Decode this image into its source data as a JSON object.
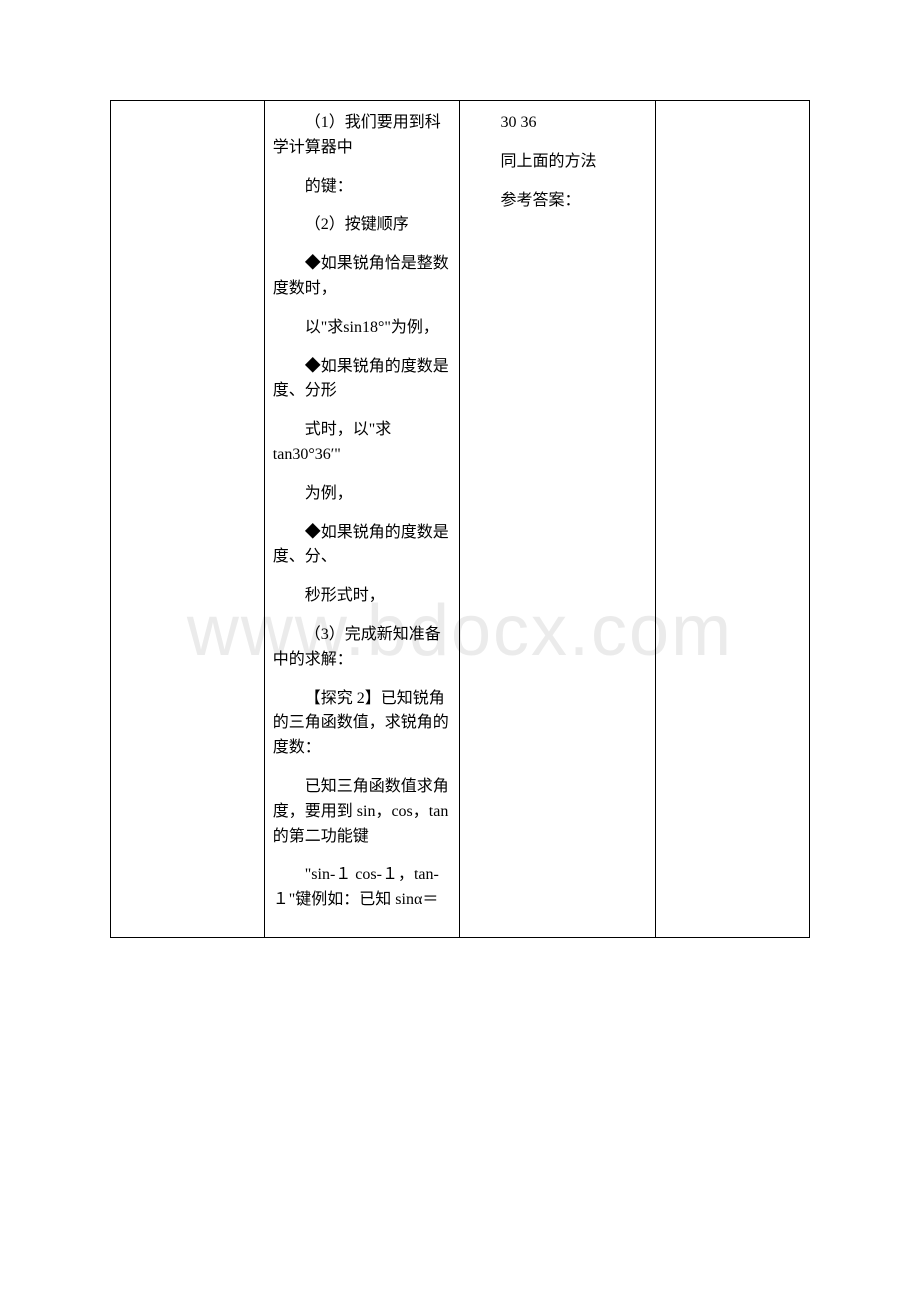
{
  "watermark": "www.bdocx.com",
  "table": {
    "col2": {
      "p1": "（1）我们要用到科学计算器中",
      "p2": "的键：",
      "p3": "（2）按键顺序",
      "p4": "◆如果锐角恰是整数度数时，",
      "p5": "以\"求sin18°\"为例，",
      "p6": "◆如果锐角的度数是度、分形",
      "p7": "式时，以\"求 tan30°36′\"",
      "p8": "为例，",
      "p9": "◆如果锐角的度数是度、分、",
      "p10": "秒形式时，",
      "p11": "（3）完成新知准备中的求解：",
      "p12": "【探究 2】已知锐角的三角函数值，求锐角的度数：",
      "p13": "已知三角函数值求角度，要用到 sin，cos，tan 的第二功能键",
      "p14": "\"sin-１ cos-１，tan-１\"键例如：已知 sinα＝"
    },
    "col3": {
      "p1": "30 36",
      "p2": "同上面的方法",
      "p3": "参考答案："
    }
  }
}
